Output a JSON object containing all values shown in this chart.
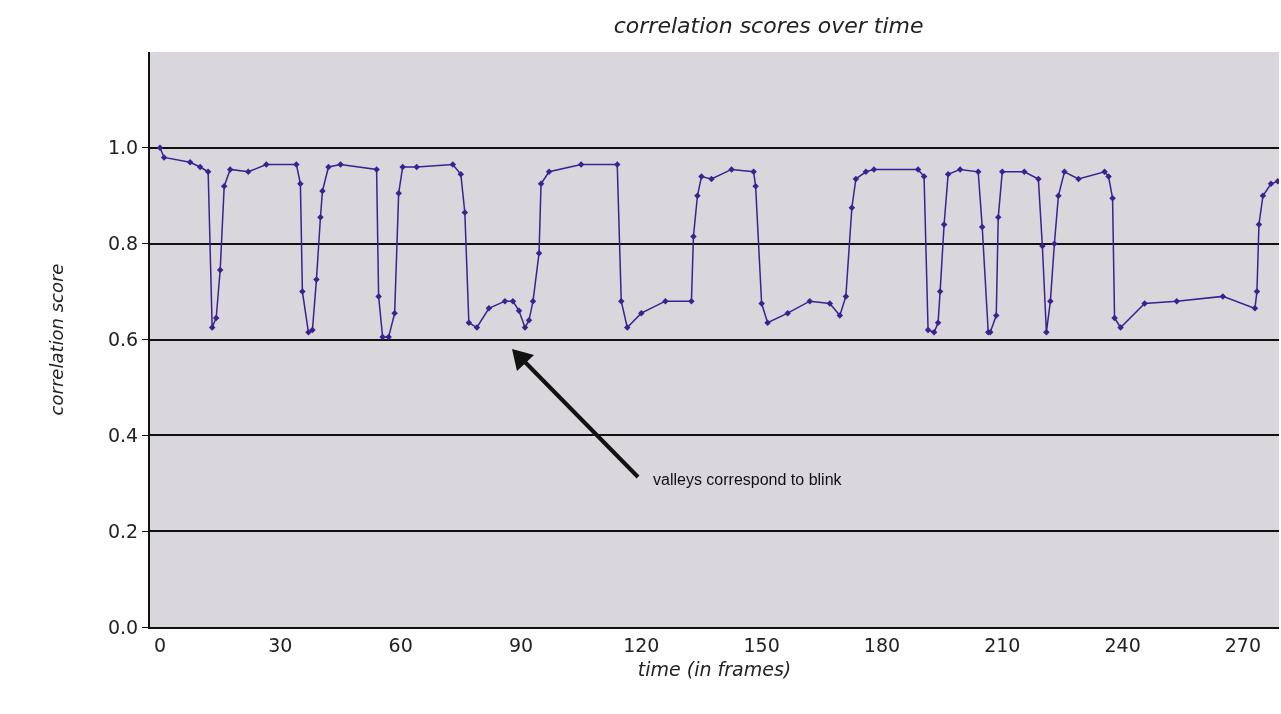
{
  "chart_data": {
    "type": "line",
    "title": "correlation scores over time",
    "xlabel": "time (in frames)",
    "ylabel": "correlation score",
    "x": [
      0,
      1,
      7.5,
      10,
      12,
      13,
      14,
      15,
      16,
      17.5,
      22,
      26.5,
      34,
      35,
      35.5,
      37,
      38,
      39,
      40,
      40.5,
      42,
      45,
      54,
      54.5,
      55.5,
      57,
      58.5,
      59.5,
      60.5,
      64,
      73,
      75,
      76,
      77,
      79,
      82,
      86,
      88,
      89.5,
      91,
      92,
      93,
      94.5,
      95,
      97,
      105,
      114,
      115,
      116.5,
      120,
      126,
      132.5,
      133,
      134,
      135,
      137.5,
      142.5,
      148,
      148.5,
      150,
      151.5,
      156.5,
      162,
      167,
      169.5,
      171,
      172.5,
      173.5,
      176,
      178,
      189,
      190.5,
      191.5,
      193,
      194,
      194.5,
      195.5,
      196.5,
      199.5,
      204,
      205,
      206.5,
      207,
      208.5,
      209,
      210,
      215.5,
      219,
      220,
      221,
      222,
      223,
      224,
      225.5,
      229,
      235.5,
      236.5,
      237.5,
      238,
      239.5,
      245.5,
      253.5,
      265,
      273,
      273.5,
      274,
      275,
      277,
      278.7
    ],
    "series": [
      {
        "color": "#3b2191",
        "values": [
          1.0,
          0.98,
          0.97,
          0.96,
          0.95,
          0.625,
          0.645,
          0.745,
          0.92,
          0.955,
          0.95,
          0.965,
          0.965,
          0.925,
          0.7,
          0.615,
          0.62,
          0.725,
          0.855,
          0.91,
          0.96,
          0.965,
          0.955,
          0.69,
          0.605,
          0.605,
          0.655,
          0.905,
          0.96,
          0.96,
          0.965,
          0.945,
          0.865,
          0.635,
          0.625,
          0.665,
          0.68,
          0.68,
          0.66,
          0.625,
          0.64,
          0.68,
          0.78,
          0.925,
          0.95,
          0.965,
          0.965,
          0.68,
          0.625,
          0.655,
          0.68,
          0.68,
          0.815,
          0.9,
          0.94,
          0.935,
          0.955,
          0.95,
          0.92,
          0.675,
          0.635,
          0.655,
          0.68,
          0.675,
          0.65,
          0.69,
          0.875,
          0.935,
          0.95,
          0.955,
          0.955,
          0.94,
          0.62,
          0.615,
          0.635,
          0.7,
          0.84,
          0.945,
          0.955,
          0.95,
          0.835,
          0.615,
          0.615,
          0.65,
          0.855,
          0.95,
          0.95,
          0.935,
          0.795,
          0.615,
          0.68,
          0.8,
          0.9,
          0.95,
          0.935,
          0.95,
          0.94,
          0.895,
          0.645,
          0.625,
          0.675,
          0.68,
          0.69,
          0.665,
          0.7,
          0.84,
          0.9,
          0.925,
          0.93
        ]
      }
    ],
    "xlim": [
      -2.5,
      279
    ],
    "ylim": [
      0,
      1.2
    ],
    "xticks": [
      0,
      30,
      60,
      90,
      120,
      150,
      180,
      210,
      240,
      270
    ],
    "yticks": [
      {
        "value": 0,
        "label": "0.0"
      },
      {
        "value": 0.2,
        "label": "0.2"
      },
      {
        "value": 0.4,
        "label": "0.4"
      },
      {
        "value": 0.6,
        "label": "0.6"
      },
      {
        "value": 0.8,
        "label": "0.8"
      },
      {
        "value": 1,
        "label": "1.0"
      }
    ],
    "grid": "y",
    "marker": "diamond",
    "line_style": "solid",
    "annotations": [
      "valleys correspond to blink"
    ]
  }
}
